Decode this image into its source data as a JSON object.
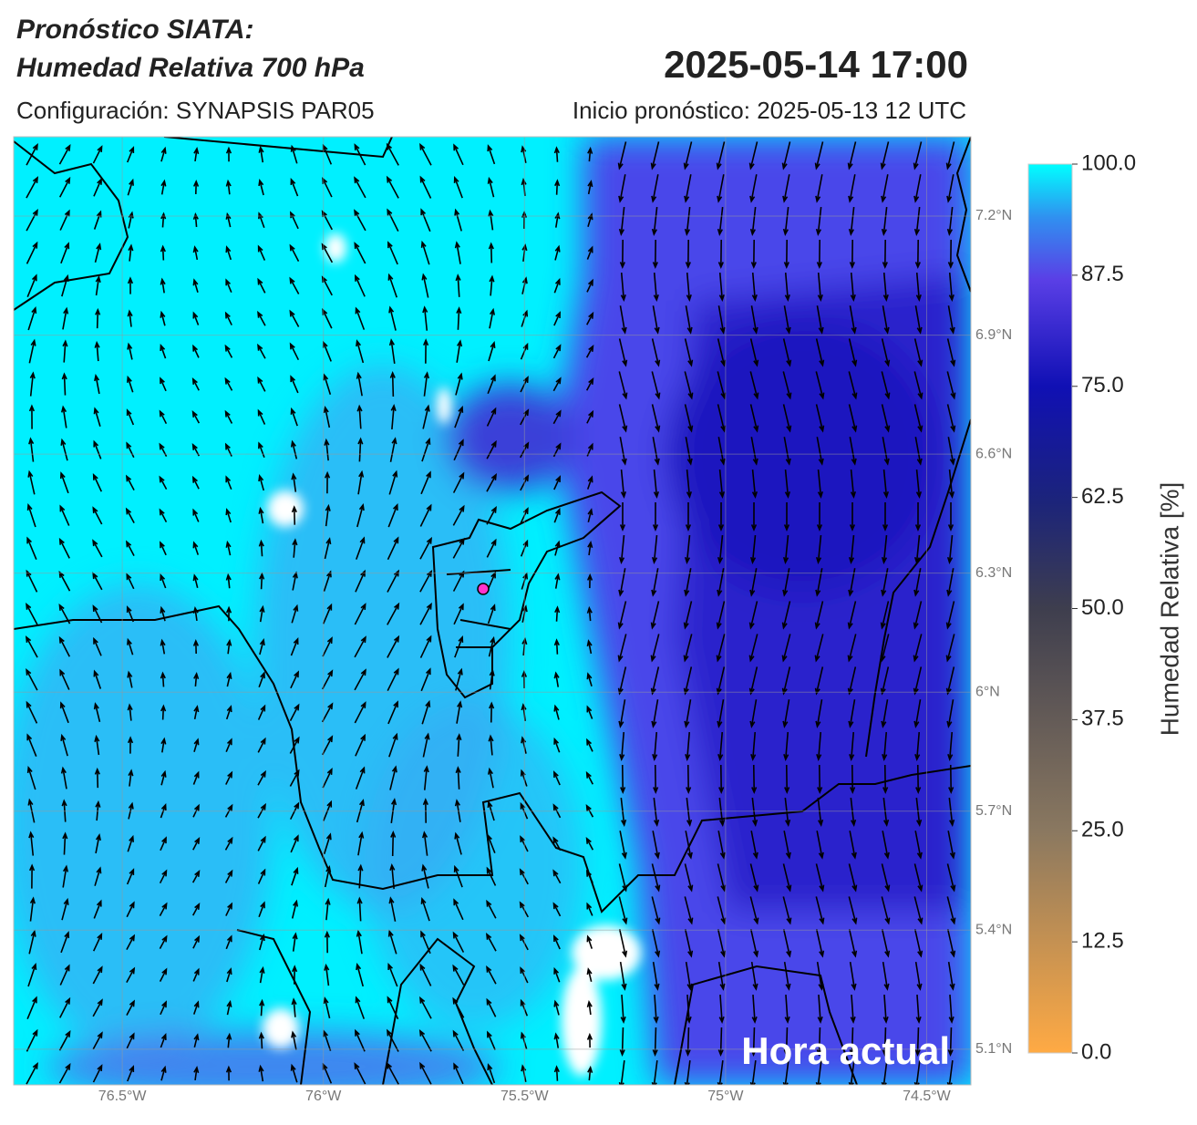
{
  "header": {
    "title_line1": "Pronóstico SIATA:",
    "title_line2": "Humedad Relativa 700 hPa",
    "valid_time": "2025-05-14 17:00",
    "config": "Configuración: SYNAPSIS PAR05",
    "init": "Inicio pronóstico: 2025-05-13 12 UTC"
  },
  "map": {
    "lonlim": [
      -76.77,
      -74.39
    ],
    "latlim": [
      5.01,
      7.4
    ],
    "lon_ticks": [
      {
        "value": -76.5,
        "label": "76.5°W"
      },
      {
        "value": -76,
        "label": "76°W"
      },
      {
        "value": -75.5,
        "label": "75.5°W"
      },
      {
        "value": -75,
        "label": "75°W"
      },
      {
        "value": -74.5,
        "label": "74.5°W"
      }
    ],
    "lat_ticks": [
      {
        "value": 5.1,
        "label": "5.1°N"
      },
      {
        "value": 5.4,
        "label": "5.4°N"
      },
      {
        "value": 5.7,
        "label": "5.7°N"
      },
      {
        "value": 6,
        "label": "6°N"
      },
      {
        "value": 6.3,
        "label": "6.3°N"
      },
      {
        "value": 6.6,
        "label": "6.6°N"
      },
      {
        "value": 6.9,
        "label": "6.9°N"
      },
      {
        "value": 7.2,
        "label": "7.2°N"
      }
    ],
    "overlay": "Hora actual"
  },
  "colorbar": {
    "label": "Humedad Relativa [%]",
    "lim": [
      0,
      100
    ],
    "ticks": [
      {
        "value": 0,
        "label": "0.0"
      },
      {
        "value": 12.5,
        "label": "12.5"
      },
      {
        "value": 25,
        "label": "25.0"
      },
      {
        "value": 37.5,
        "label": "37.5"
      },
      {
        "value": 50,
        "label": "50.0"
      },
      {
        "value": 62.5,
        "label": "62.5"
      },
      {
        "value": 75,
        "label": "75.0"
      },
      {
        "value": 87.5,
        "label": "87.5"
      },
      {
        "value": 100,
        "label": "100.0"
      }
    ]
  }
}
